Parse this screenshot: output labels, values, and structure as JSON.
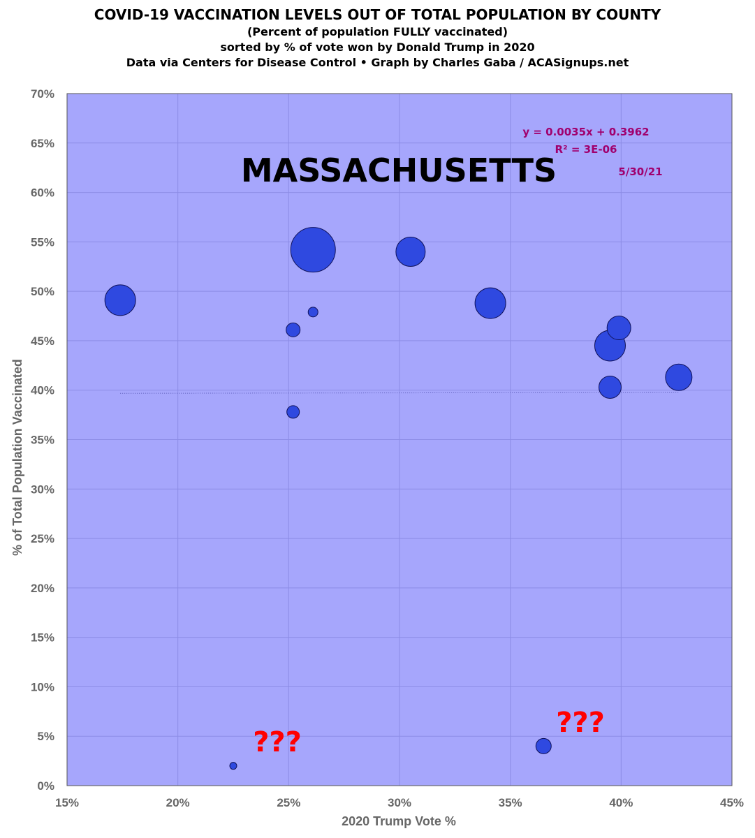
{
  "header": {
    "line1": "COVID-19 VACCINATION LEVELS OUT OF TOTAL POPULATION BY COUNTY",
    "line2": "(Percent of population FULLY vaccinated)",
    "line3": "sorted by % of vote won by Donald Trump in 2020",
    "line4": "Data via Centers for Disease Control • Graph by Charles Gaba / ACASignups.net"
  },
  "colors": {
    "plot_bg": "#a6a6fc",
    "grid": "#8c8ce6",
    "bubble_fill": "#2f49e0",
    "bubble_stroke": "#10125a",
    "trend": "#5a5ab8",
    "annotation": "#a0006e",
    "question": "#ff0000"
  },
  "chart_data": {
    "type": "scatter",
    "title": "MASSACHUSETTS",
    "xlabel": "2020 Trump Vote %",
    "ylabel": "% of Total Population Vaccinated",
    "xlim": [
      0.15,
      0.45
    ],
    "ylim": [
      0,
      0.7
    ],
    "x_ticks": [
      "15%",
      "20%",
      "25%",
      "30%",
      "35%",
      "40%",
      "45%"
    ],
    "y_ticks": [
      "0%",
      "5%",
      "10%",
      "15%",
      "20%",
      "25%",
      "30%",
      "35%",
      "40%",
      "45%",
      "50%",
      "55%",
      "60%",
      "65%",
      "70%"
    ],
    "grid": true,
    "points": [
      {
        "x": 0.174,
        "y": 0.491,
        "size": 22
      },
      {
        "x": 0.225,
        "y": 0.02,
        "size": 5
      },
      {
        "x": 0.252,
        "y": 0.461,
        "size": 10
      },
      {
        "x": 0.252,
        "y": 0.378,
        "size": 9
      },
      {
        "x": 0.261,
        "y": 0.542,
        "size": 32
      },
      {
        "x": 0.261,
        "y": 0.479,
        "size": 7
      },
      {
        "x": 0.305,
        "y": 0.54,
        "size": 21
      },
      {
        "x": 0.341,
        "y": 0.488,
        "size": 22
      },
      {
        "x": 0.365,
        "y": 0.04,
        "size": 11
      },
      {
        "x": 0.395,
        "y": 0.445,
        "size": 22
      },
      {
        "x": 0.395,
        "y": 0.403,
        "size": 16
      },
      {
        "x": 0.399,
        "y": 0.463,
        "size": 17
      },
      {
        "x": 0.426,
        "y": 0.413,
        "size": 19
      }
    ],
    "trendline": {
      "slope": 0.0035,
      "intercept": 0.3962,
      "x_range": [
        0.174,
        0.426
      ]
    },
    "annotations": {
      "equation": "y = 0.0035x + 0.3962",
      "r_squared": "R² = 3E-06",
      "date": "5/30/21",
      "question_marks": [
        "???",
        "???"
      ]
    }
  }
}
